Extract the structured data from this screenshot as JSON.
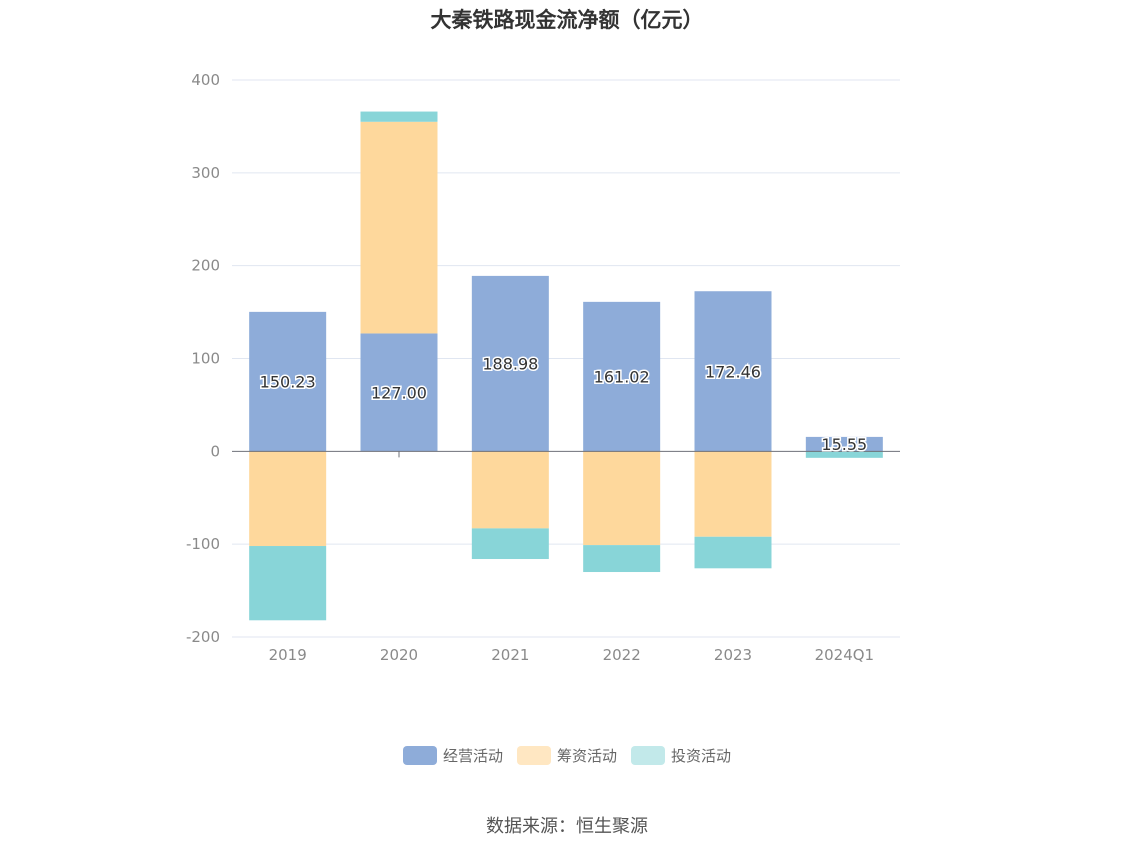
{
  "chart_data": {
    "type": "bar",
    "title": "大秦铁路现金流净额（亿元）",
    "categories": [
      "2019",
      "2020",
      "2021",
      "2022",
      "2023",
      "2024Q1"
    ],
    "series": [
      {
        "name": "经营活动",
        "color": "#8eacd9",
        "values": [
          150.23,
          127.0,
          188.98,
          161.02,
          172.46,
          15.55
        ]
      },
      {
        "name": "筹资活动",
        "color": "#fed89c",
        "values": [
          -102,
          228,
          -83,
          -101,
          -92,
          0
        ]
      },
      {
        "name": "投资活动",
        "color": "#88d5d8",
        "values": [
          -80,
          11,
          -33,
          -29,
          -34,
          -7
        ]
      }
    ],
    "data_labels": [
      "150.23",
      "127.00",
      "188.98",
      "161.02",
      "172.46",
      "15.55"
    ],
    "ylim": [
      -200,
      400
    ],
    "yticks": [
      "400",
      "300",
      "200",
      "100",
      "0",
      "-100",
      "-200"
    ],
    "stacked": true,
    "grid": true,
    "legend_position": "bottom",
    "legend_colors": [
      "#8eacd9",
      "#ffe7c2",
      "#c2e9ea"
    ]
  },
  "source": "数据来源：恒生聚源"
}
